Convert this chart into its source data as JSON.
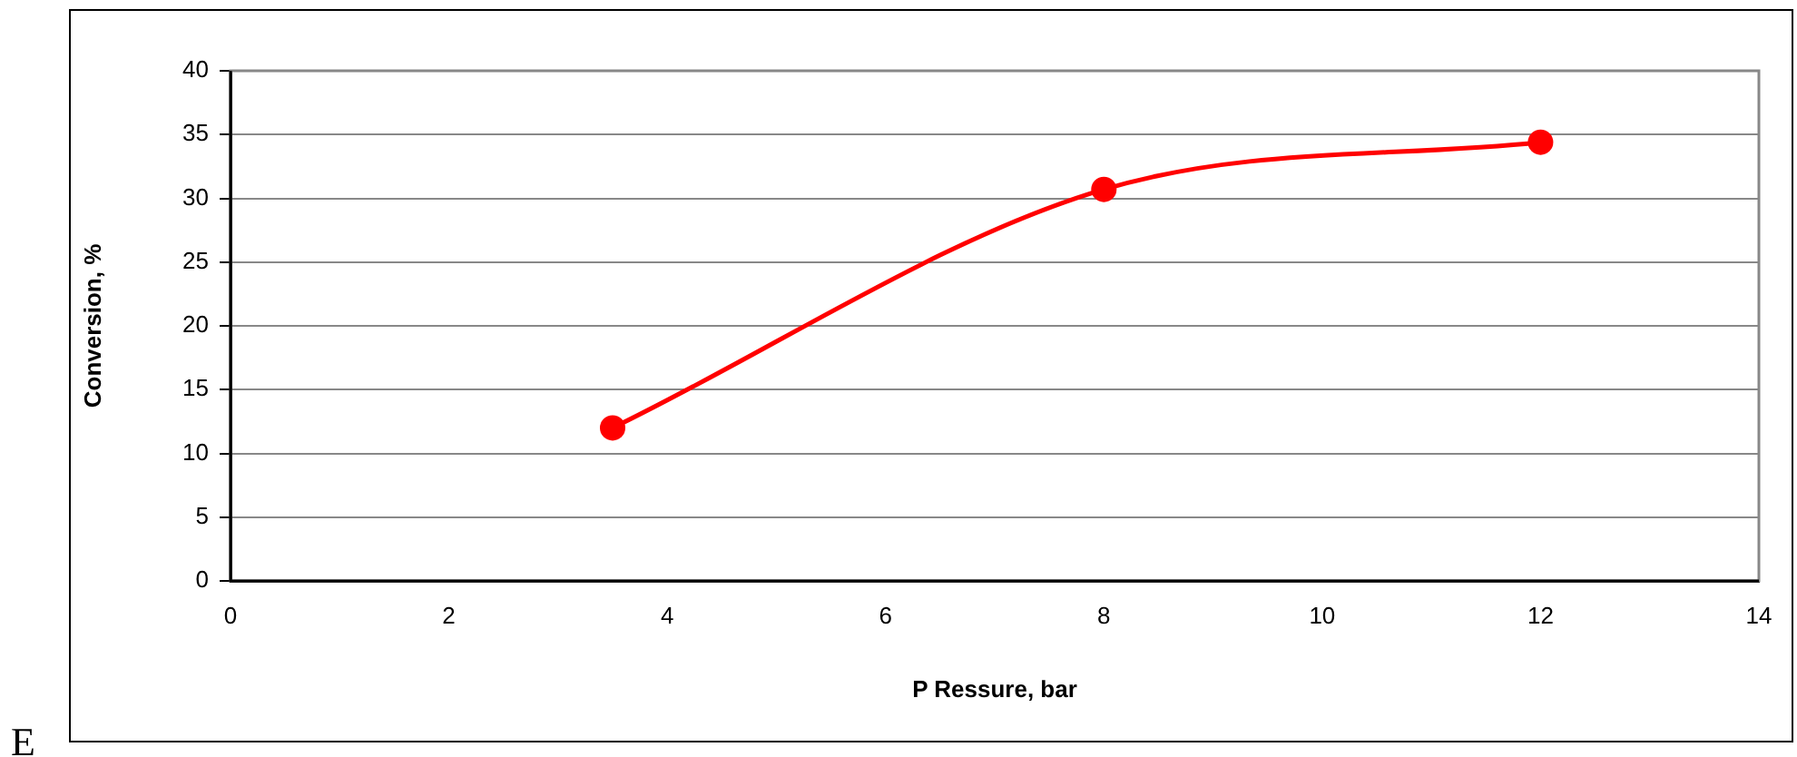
{
  "chart_data": {
    "type": "line",
    "xlabel": "P Ressure, bar",
    "ylabel": "Conversion, %",
    "series": [
      {
        "x": [
          3.5,
          8,
          12
        ],
        "values": [
          12,
          30.7,
          34.4
        ],
        "color": "#ff0000"
      }
    ],
    "xlim": [
      0,
      14
    ],
    "xticks": [
      0,
      2,
      4,
      6,
      8,
      10,
      12,
      14
    ],
    "ylim": [
      0,
      40
    ],
    "yticks": [
      0,
      5,
      10,
      15,
      20,
      25,
      30,
      35,
      40
    ],
    "grid": "y",
    "legend": false,
    "marker": "circle",
    "line_style": "solid",
    "annotations": [
      "E"
    ]
  }
}
